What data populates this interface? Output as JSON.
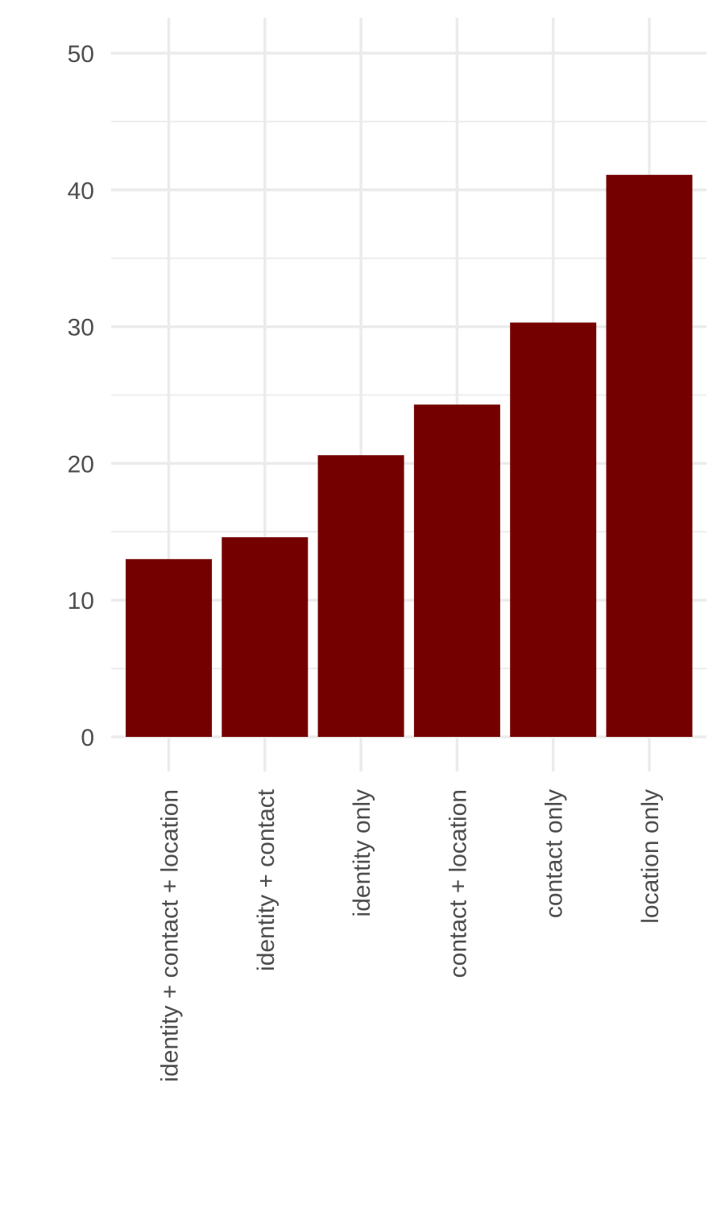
{
  "chart_data": {
    "type": "bar",
    "title": "",
    "xlabel": "",
    "ylabel": "",
    "categories": [
      "identity + contact + location",
      "identity + contact",
      "identity only",
      "contact + location",
      "contact only",
      "location only"
    ],
    "values": [
      13.0,
      14.6,
      20.6,
      24.3,
      30.3,
      41.1
    ],
    "ylim": [
      0,
      52
    ],
    "yticks": [
      0,
      10,
      20,
      30,
      40,
      50
    ],
    "grid": true,
    "legend": "none",
    "bar_color": "#750000",
    "grid_color": "#ebebeb"
  }
}
